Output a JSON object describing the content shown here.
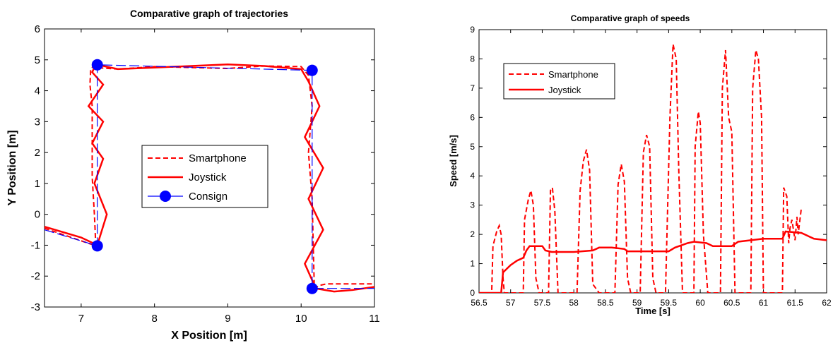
{
  "chart_data": [
    {
      "type": "line",
      "title": "Comparative graph of trajectories",
      "xlabel": "X Position [m]",
      "ylabel": "Y Position [m]",
      "xlim": [
        6.5,
        11
      ],
      "ylim": [
        -3,
        6
      ],
      "xticks": [
        7,
        8,
        9,
        10,
        11
      ],
      "yticks": [
        -3,
        -2,
        -1,
        0,
        1,
        2,
        3,
        4,
        5,
        6
      ],
      "grid": false,
      "legend_position": "center",
      "legend": [
        "Smartphone",
        "Joystick",
        "Consign"
      ],
      "series": [
        {
          "name": "Smartphone",
          "style": "dashed",
          "color": "#ff0000",
          "x": [
            6.5,
            7.2,
            7.18,
            7.15,
            7.15,
            7.15,
            7.12,
            7.13,
            7.17,
            7.2,
            7.5,
            8.0,
            8.5,
            9.0,
            9.5,
            10.0,
            10.1,
            10.15,
            10.1,
            10.15,
            10.17,
            10.18,
            10.25,
            10.35,
            10.6,
            11.0
          ],
          "y": [
            -0.45,
            -1.02,
            0.0,
            1.2,
            2.5,
            3.5,
            4.2,
            4.7,
            4.8,
            4.75,
            4.7,
            4.78,
            4.75,
            4.72,
            4.8,
            4.78,
            4.5,
            3.5,
            2.0,
            0.5,
            -1.5,
            -2.4,
            -2.3,
            -2.25,
            -2.25,
            -2.25
          ]
        },
        {
          "name": "Joystick",
          "style": "solid",
          "color": "#ff0000",
          "x": [
            6.5,
            7.0,
            7.22,
            7.35,
            7.18,
            7.3,
            7.15,
            7.3,
            7.1,
            7.3,
            7.15,
            7.2,
            7.5,
            8.0,
            8.5,
            9.0,
            9.5,
            10.0,
            10.1,
            10.25,
            10.05,
            10.3,
            10.1,
            10.3,
            10.05,
            10.2,
            10.45,
            10.7,
            11.0
          ],
          "y": [
            -0.4,
            -0.75,
            -1.0,
            0.0,
            1.0,
            1.8,
            2.3,
            3.0,
            3.5,
            4.2,
            4.6,
            4.85,
            4.7,
            4.75,
            4.8,
            4.85,
            4.8,
            4.7,
            4.3,
            3.5,
            2.5,
            1.5,
            0.5,
            -0.5,
            -1.6,
            -2.4,
            -2.5,
            -2.45,
            -2.35
          ]
        },
        {
          "name": "Consign",
          "style": "dash-dot",
          "color": "#0000ff",
          "x": [
            6.5,
            7.22,
            7.22,
            10.15,
            10.15,
            11.0
          ],
          "y": [
            -0.5,
            -1.02,
            4.84,
            4.66,
            -2.4,
            -2.4
          ],
          "markers": [
            [
              7.22,
              4.84
            ],
            [
              10.15,
              4.66
            ],
            [
              7.22,
              -1.02
            ],
            [
              10.15,
              -2.4
            ]
          ]
        }
      ]
    },
    {
      "type": "line",
      "title": "Comparative graph of speeds",
      "xlabel": "Time [s]",
      "ylabel": "Speed [m/s]",
      "xlim": [
        56.5,
        62
      ],
      "ylim": [
        0,
        9
      ],
      "xticks": [
        56.5,
        57,
        57.5,
        58,
        58.5,
        59,
        59.5,
        60,
        60.5,
        61,
        61.5,
        62
      ],
      "yticks": [
        0,
        1,
        2,
        3,
        4,
        5,
        6,
        7,
        8,
        9
      ],
      "grid": false,
      "legend_position": "top-left",
      "legend": [
        "Smartphone",
        "Joystick"
      ],
      "series": [
        {
          "name": "Smartphone",
          "style": "dashed",
          "color": "#ff0000",
          "x": [
            56.5,
            56.7,
            56.72,
            56.78,
            56.82,
            56.85,
            56.88,
            56.9,
            57.2,
            57.22,
            57.28,
            57.32,
            57.36,
            57.4,
            57.45,
            57.5,
            57.6,
            57.63,
            57.66,
            57.7,
            57.75,
            58.05,
            58.1,
            58.15,
            58.2,
            58.25,
            58.3,
            58.4,
            58.65,
            58.7,
            58.75,
            58.8,
            58.85,
            58.9,
            59.05,
            59.1,
            59.15,
            59.2,
            59.25,
            59.3,
            59.45,
            59.52,
            59.57,
            59.62,
            59.66,
            59.72,
            59.9,
            59.92,
            59.97,
            60.0,
            60.05,
            60.12,
            60.32,
            60.35,
            60.4,
            60.45,
            60.5,
            60.55,
            60.8,
            60.83,
            60.88,
            60.92,
            60.97,
            61.0,
            61.3,
            61.32,
            61.37,
            61.4,
            61.42,
            61.45,
            61.5,
            61.53,
            61.55,
            61.6
          ],
          "y": [
            0,
            0,
            1.6,
            2.1,
            2.3,
            2.0,
            0.5,
            0,
            0,
            2.5,
            3.2,
            3.5,
            3.0,
            0.5,
            0,
            0,
            0,
            3.5,
            3.6,
            2.8,
            0,
            0,
            3.5,
            4.5,
            4.9,
            4.2,
            0.3,
            0,
            0,
            3.7,
            4.4,
            3.8,
            0.5,
            0,
            0,
            4.8,
            5.4,
            5.0,
            0.5,
            0,
            0,
            6.0,
            8.5,
            8.0,
            4.2,
            0,
            0,
            5.0,
            6.2,
            5.8,
            2.0,
            0,
            0,
            7.0,
            8.3,
            6.0,
            5.5,
            0,
            0,
            7.0,
            8.3,
            8.0,
            6.0,
            0,
            0,
            3.6,
            3.3,
            1.7,
            2.2,
            2.5,
            1.8,
            2.6,
            2.0,
            2.9
          ]
        },
        {
          "name": "Joystick",
          "style": "solid",
          "color": "#ff0000",
          "x": [
            56.5,
            56.85,
            56.88,
            57.0,
            57.1,
            57.2,
            57.25,
            57.3,
            57.5,
            57.55,
            57.65,
            58.0,
            58.3,
            58.4,
            58.6,
            58.8,
            58.85,
            59.0,
            59.5,
            59.6,
            59.8,
            59.9,
            60.1,
            60.2,
            60.5,
            60.6,
            60.8,
            61.0,
            61.3,
            61.35,
            61.6,
            61.8,
            62.0
          ],
          "y": [
            0,
            0,
            0.7,
            0.95,
            1.1,
            1.2,
            1.45,
            1.6,
            1.6,
            1.45,
            1.4,
            1.4,
            1.45,
            1.55,
            1.55,
            1.5,
            1.42,
            1.42,
            1.42,
            1.55,
            1.7,
            1.75,
            1.7,
            1.6,
            1.6,
            1.75,
            1.8,
            1.85,
            1.85,
            2.1,
            2.05,
            1.85,
            1.8
          ]
        }
      ]
    }
  ]
}
